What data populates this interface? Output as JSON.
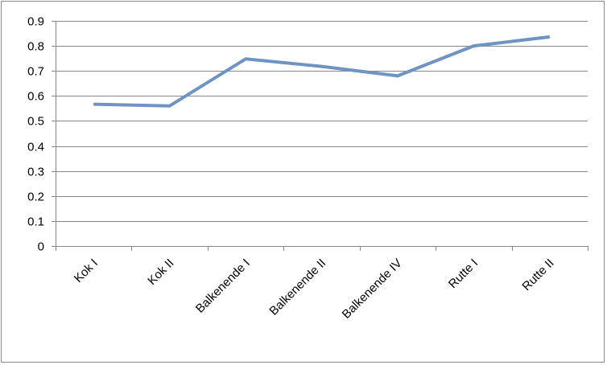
{
  "chart_data": {
    "type": "line",
    "title": "",
    "xlabel": "",
    "ylabel": "",
    "categories": [
      "Kok I",
      "Kok II",
      "Balkenende I",
      "Balkenende II",
      "Balkenende IV",
      "Rutte I",
      "Rutte II"
    ],
    "series": [
      {
        "values": [
          0.567,
          0.56,
          0.748,
          0.718,
          0.68,
          0.8,
          0.836
        ]
      }
    ],
    "ylim": [
      0,
      0.9
    ],
    "yticks": [
      "0",
      "0.1",
      "0.2",
      "0.3",
      "0.4",
      "0.5",
      "0.6",
      "0.7",
      "0.8",
      "0.9"
    ],
    "grid": true,
    "legend": "none",
    "line_color": "#6f93c3",
    "grid_color": "#878787",
    "axis_color": "#878787"
  }
}
